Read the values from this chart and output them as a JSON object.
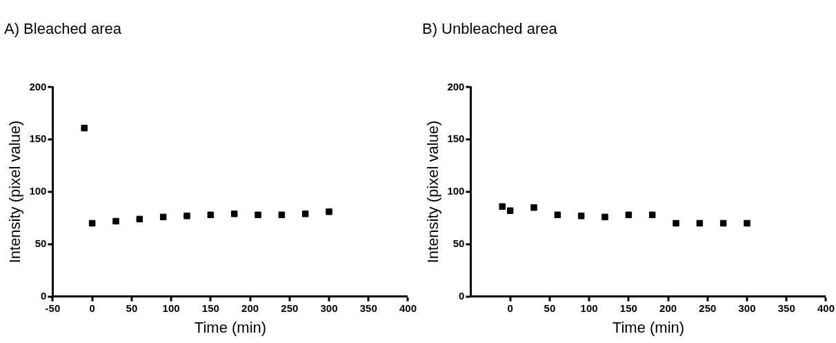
{
  "chart_data": [
    {
      "type": "scatter",
      "title": "A) Bleached area",
      "xlabel": "Time (min)",
      "ylabel": "Intensity (pixel value)",
      "marker": "square",
      "color": "#000000",
      "x": [
        -10,
        0,
        30,
        60,
        90,
        120,
        150,
        180,
        210,
        240,
        270,
        300
      ],
      "values": [
        161,
        70,
        72,
        74,
        76,
        77,
        78,
        79,
        78,
        78,
        79,
        81
      ],
      "xlim": [
        -50,
        400
      ],
      "xticks": [
        -50,
        0,
        50,
        100,
        150,
        200,
        250,
        300,
        350,
        400
      ],
      "ylim": [
        0,
        200
      ],
      "yticks": [
        0,
        50,
        100,
        150,
        200
      ]
    },
    {
      "type": "scatter",
      "title": "B) Unbleached area",
      "xlabel": "Time (min)",
      "ylabel": "Intensity (pixel value)",
      "marker": "square",
      "color": "#000000",
      "x": [
        -10,
        0,
        30,
        60,
        90,
        120,
        150,
        180,
        210,
        240,
        270,
        300
      ],
      "values": [
        86,
        82,
        85,
        78,
        77,
        76,
        78,
        78,
        70,
        70,
        70,
        70
      ],
      "xlim": [
        -50,
        400
      ],
      "xticks": [
        0,
        50,
        100,
        150,
        200,
        250,
        300,
        350,
        400
      ],
      "ylim": [
        0,
        200
      ],
      "yticks": [
        0,
        50,
        100,
        150,
        200
      ]
    }
  ]
}
